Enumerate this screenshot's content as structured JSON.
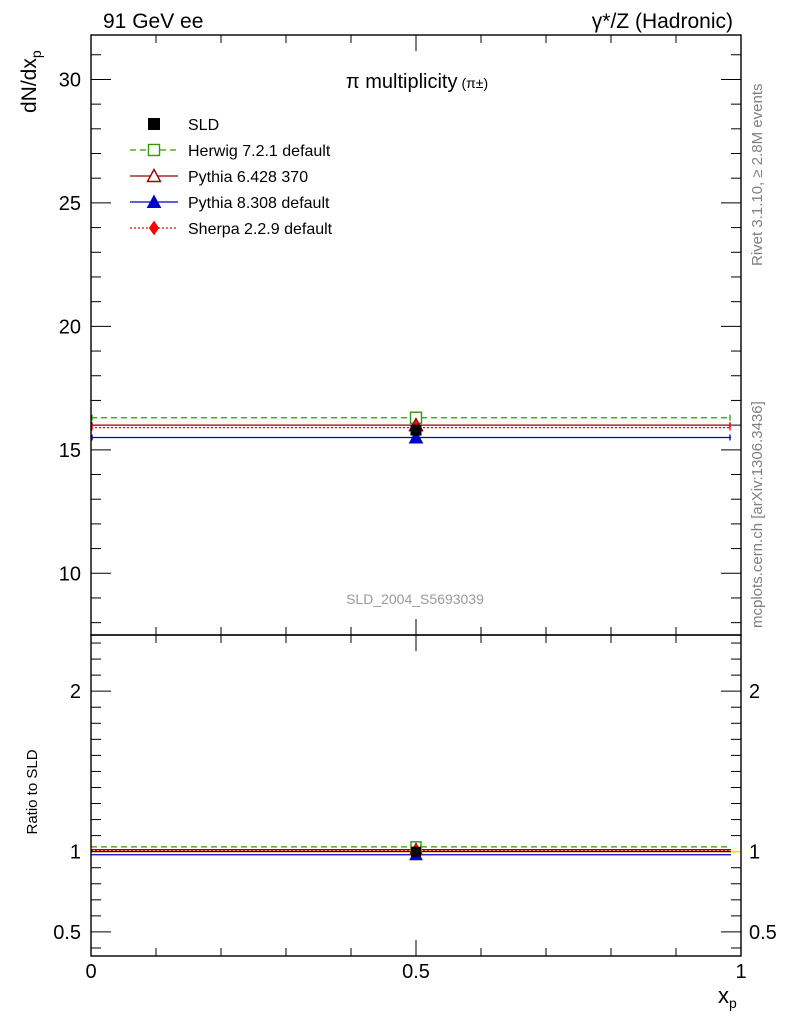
{
  "header": {
    "left": "91 GeV ee",
    "right": "γ*/Z (Hadronic)"
  },
  "side_labels": {
    "rivet": "Rivet 3.1.10, ≥ 2.8M events",
    "mcplots": "mcplots.cern.ch [arXiv:1306.3436]"
  },
  "chart_data": {
    "type": "scatter",
    "title": "π multiplicity",
    "title_suffix": "(π±)",
    "analysis_id": "SLD_2004_S5693039",
    "xlabel": "x",
    "xlabel_sub": "p",
    "ylabel": "dN/dx",
    "ylabel_sub": "p",
    "ratio_ylabel": "Ratio to SLD",
    "xlim": [
      0,
      1
    ],
    "ylim": [
      7.5,
      31.8
    ],
    "ratio_ylim": [
      0.35,
      2.35
    ],
    "x_ticks": [
      {
        "value": 0,
        "label": "0"
      },
      {
        "value": 0.5,
        "label": "0.5"
      },
      {
        "value": 1,
        "label": "1"
      }
    ],
    "y_ticks": [
      {
        "value": 10,
        "label": "10"
      },
      {
        "value": 15,
        "label": "15"
      },
      {
        "value": 20,
        "label": "20"
      },
      {
        "value": 25,
        "label": "25"
      },
      {
        "value": 30,
        "label": "30"
      }
    ],
    "ratio_ticks": [
      {
        "value": 0.5,
        "label": "0.5"
      },
      {
        "value": 1,
        "label": "1"
      },
      {
        "value": 2,
        "label": "2"
      }
    ],
    "legend_position": "top-left",
    "series": [
      {
        "name": "SLD",
        "x": 0.5,
        "y": 15.8,
        "ratio": 1.0,
        "color": "#000000",
        "marker": "square-filled",
        "line": "none"
      },
      {
        "name": "Herwig 7.2.1 default",
        "x": 0.5,
        "y": 16.3,
        "ratio": 1.03,
        "color": "#339900",
        "marker": "square-open",
        "line": "dashed"
      },
      {
        "name": "Pythia 6.428 370",
        "x": 0.5,
        "y": 16.0,
        "ratio": 1.013,
        "color": "#990000",
        "marker": "triangle-open",
        "line": "solid"
      },
      {
        "name": "Pythia 8.308 default",
        "x": 0.5,
        "y": 15.5,
        "ratio": 0.981,
        "color": "#0000cc",
        "marker": "triangle-filled",
        "line": "solid"
      },
      {
        "name": "Sherpa 2.2.9 default",
        "x": 0.5,
        "y": 15.9,
        "ratio": 1.006,
        "color": "#ff0000",
        "marker": "diamond-filled",
        "line": "dotted"
      }
    ]
  }
}
